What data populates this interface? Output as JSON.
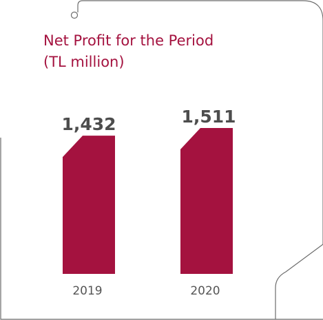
{
  "colors": {
    "accent": "#a4123f",
    "frame": "#6b6b6b",
    "value_text": "#4d4d4d",
    "tick_text": "#555555"
  },
  "chart_data": {
    "type": "bar",
    "title": "Net Profit for the Period",
    "subtitle": "(TL million)",
    "categories": [
      "2019",
      "2020"
    ],
    "values": [
      1432,
      1511
    ],
    "data_labels": [
      "1,432",
      "1,511"
    ],
    "xlabel": "",
    "ylabel": "",
    "ylim": [
      0,
      1511
    ],
    "grid": false,
    "legend": "none"
  }
}
